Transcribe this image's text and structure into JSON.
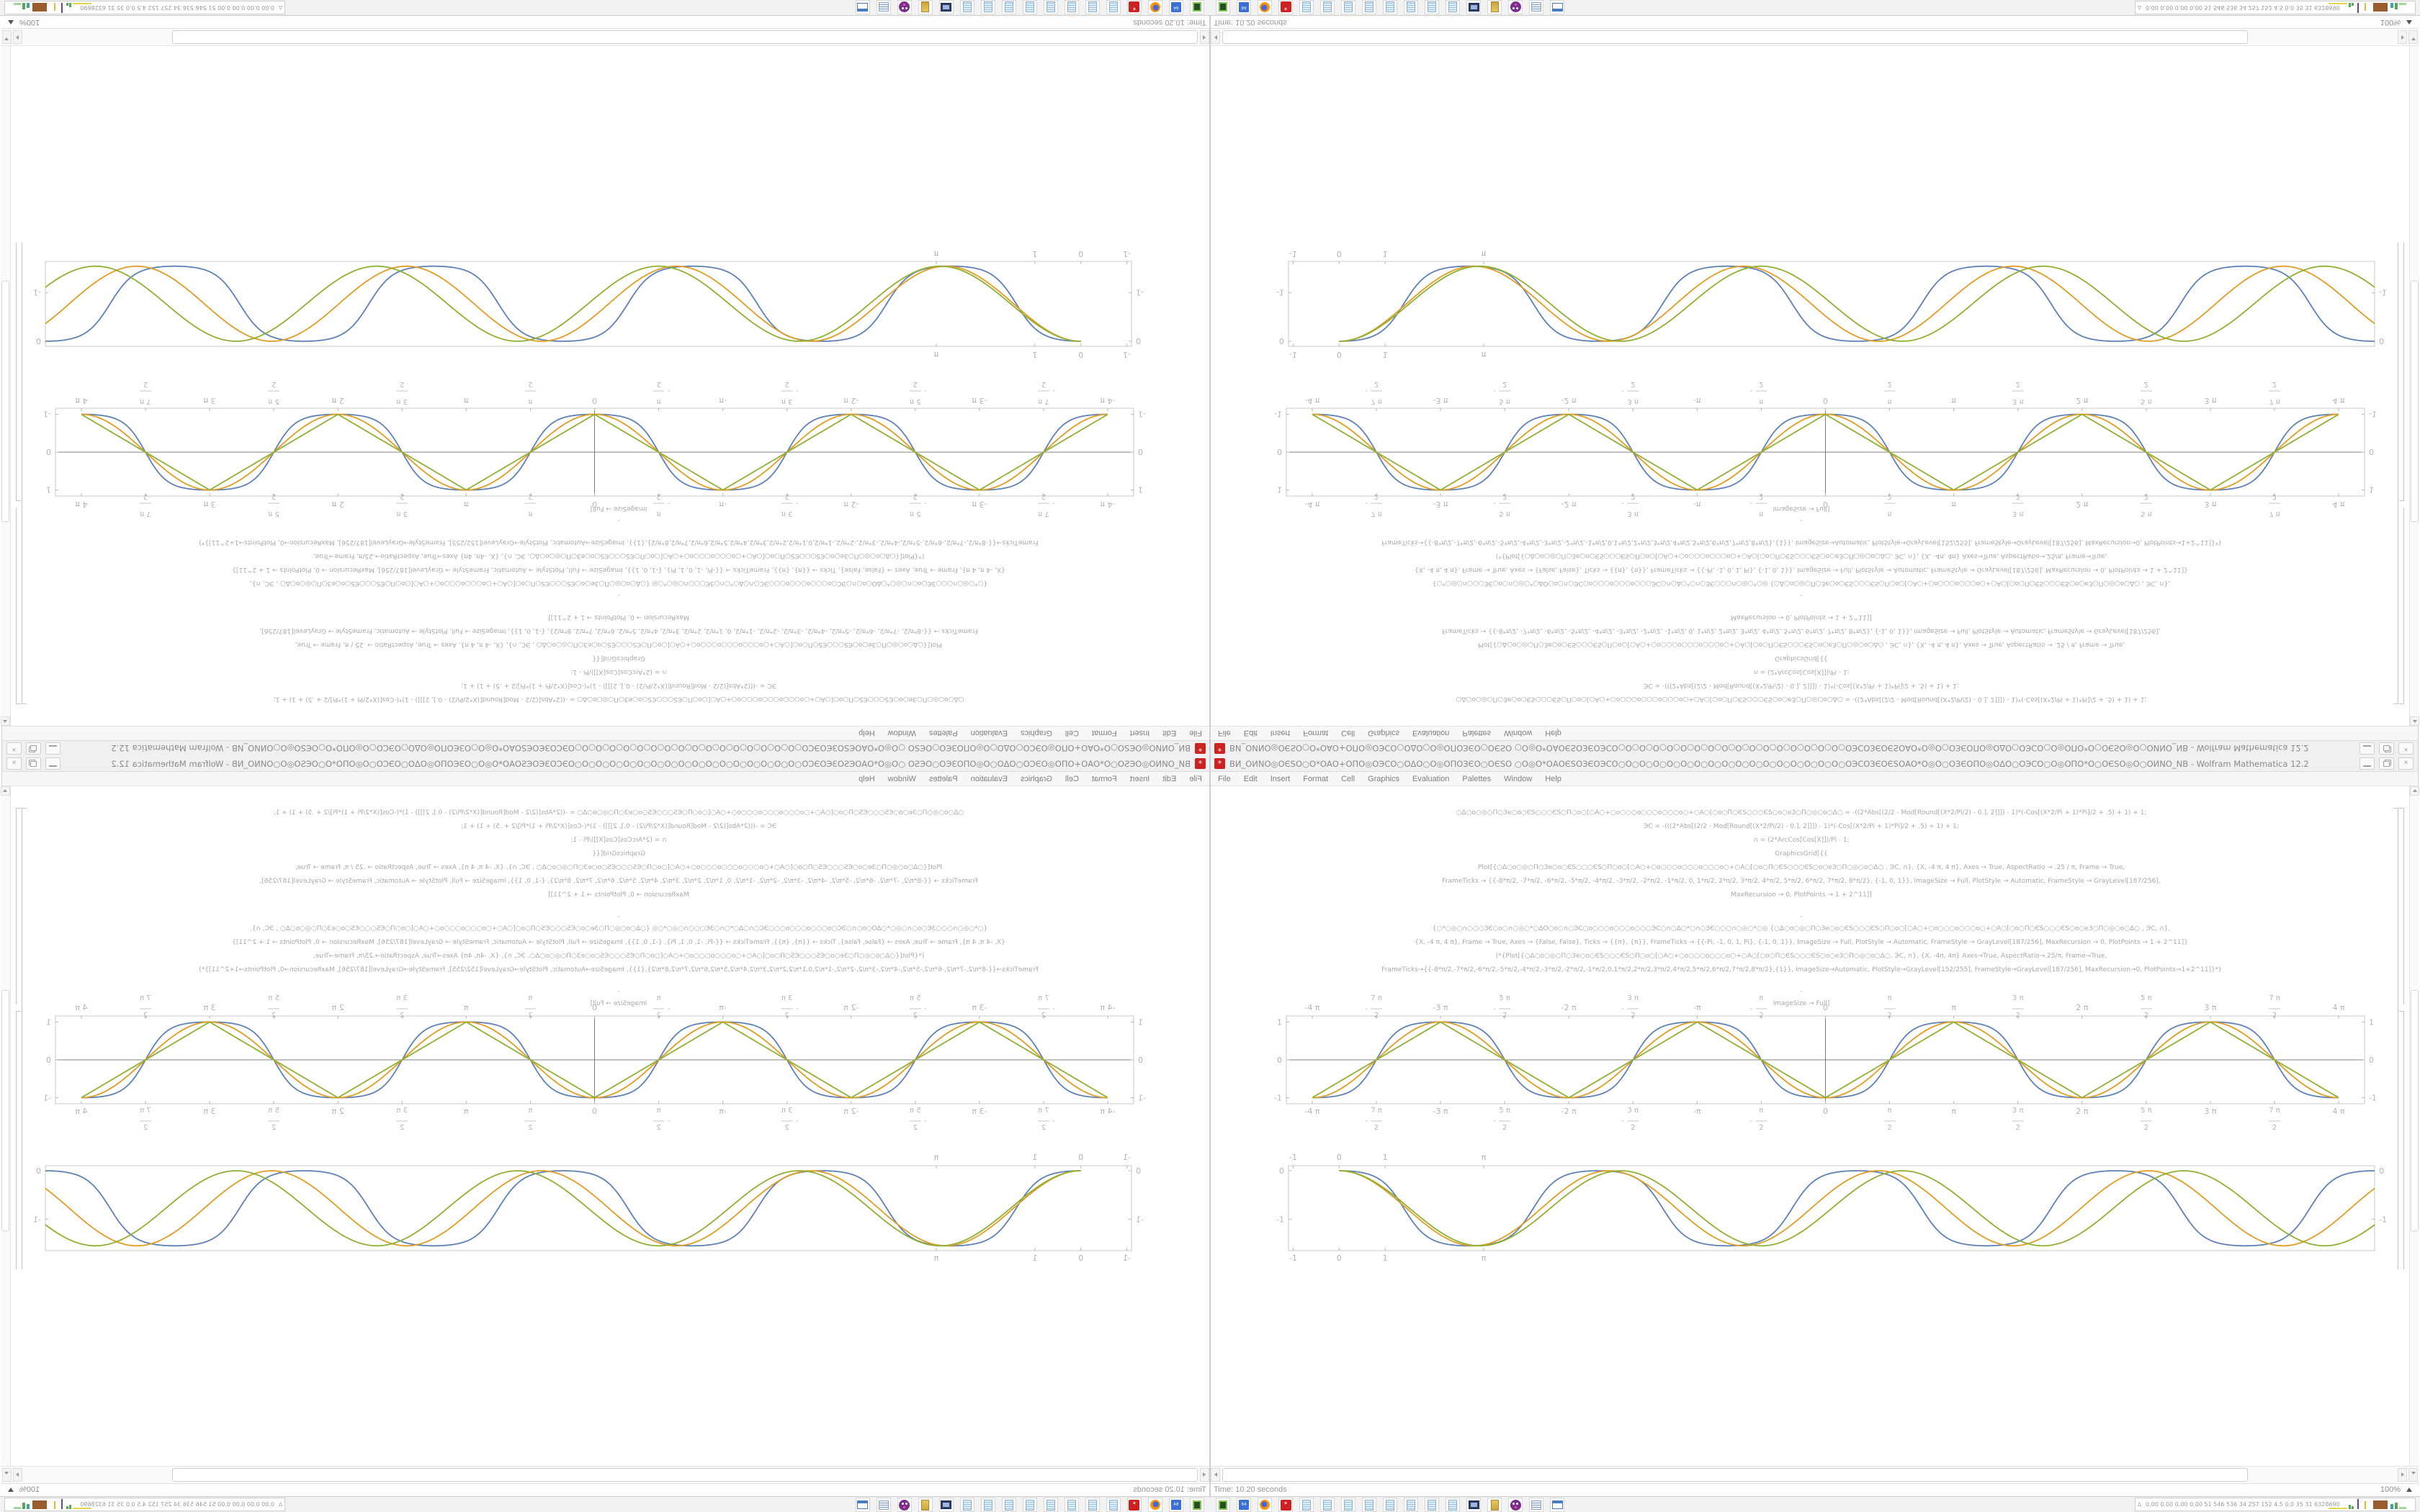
{
  "window": {
    "title": "ВИ_ОИNО◎ОЄЅО○О*ОАО+ОПО◎ОЭСО○ОΔО○О◎ОПОЗЄО○ОЄЅО ○О◎О*ОАОЄЅОЗЄОЭСО○О○О○О○О○О○О○О○О○О○О○О○О○О○О○О○О○ОЭСОЗЄОЄЅОАО*О◎О○ОЗЄОПО◎ОΔО○ОЭСО○О◎ОПО*О○ОЄЅО◎О○ОИNО_NВ - Wolfram Mathematica 12.2",
    "app_icon_glyph": "*"
  },
  "menu": {
    "items": [
      "File",
      "Edit",
      "Insert",
      "Format",
      "Cell",
      "Graphics",
      "Evaluation",
      "Palettes",
      "Window",
      "Help"
    ]
  },
  "code": {
    "lines": [
      {
        "text": "○Δ○о○◎○П○Зе○о○ЄЅ○○○ЄЅ○П○о○[○А○+○о○○○о○○○о○○○о○+○А○[○о○П○ЄЅ○○○ЄЅ○о○еЗ○П○◎○о○Δ○    = -((2*Abs[(2/2 - Mod[Round[(X*2/Pi/2) - 0.], 2]]]) - 1)*(-Cos[(X*2/Pi + 1)*Pi]/2 + .5) + 1) + 1;"
      },
      {
        "text": "ЭС = -(((2*Abs[(2/2 - Mod[Round[(X*2/Pi/2) - 0.], 2]]]) - 1)*(-Cos[(X*2/Pi + 1)*Pi]/2 + .5) + 1) + 1;"
      },
      {
        "text": "∩ = (2*ArcCos[Cos[X]])/Pi - 1;"
      },
      {
        "text": "GraphicsGrid[{{"
      },
      {
        "text": "Plot[{○Δ○о○◎○П○Зе○о○ЄЅ○○○ЄЅ○П○о○[○А○+○о○○○о○○○о○○○о○+○А○[○о○П○ЄЅ○○○ЄЅ○о○еЗ○П○◎○о○Δ○   , ЭС, ∩}, {X, -4 π, 4 π}, Axes → True, AspectRatio → .25 / π, Frame → True,"
      },
      {
        "text": "FrameTicks → {{-8*π/2, -7*π/2, -6*π/2, -5*π/2, -4*π/2, -3*π/2, -2*π/2, -1*π/2, 0, 1*π/2, 2*π/2, 3*π/2, 4*π/2, 5*π/2, 6*π/2, 7*π/2, 8*π/2}, {-1, 0, 1}}, ImageSize → Full, PlotStyle → Automatic, FrameStyle → GrayLevel[187/256],"
      },
      {
        "text": "MaxRecursion → 0, PlotPoints → 1 + 2^11]]"
      },
      {
        "gap": true
      },
      {
        "text": ","
      },
      {
        "text": "{○*○◎○∩○○○ЗЄ○о○∩○◎○*○ΔО○о○∩○ЭС○о○○○о○○○о○○○ЭС○∩○Δ○*○∩○ЗЄ○○○∩○◎○*○◎   {○Δ○о○◎○П○Зе○о○ЄЅ○○○ЄЅ○П○о○[○А○+○о○○○о○○○о○+○А○[○о○П○ЄЅ○○○ЄЅ○о○еЗ○П○◎○о○Δ○   , ЭС, ∩},"
      },
      {
        "text": "{X, -4 π, 4 π}, Frame → True, Axes → {False, False}, Ticks → {{π}, {π}}, FrameTicks → {{-Pi, -1, 0, 1, Pi}, {-1, 0, 1}}, ImageSize → Full, PlotStyle → Automatic, FrameStyle → GrayLevel[187/256], MaxRecursion → 0, PlotPoints → 1 + 2^11]}"
      },
      {
        "text": "(*{Plot[{○Δ○о○◎○П○Зе○о○ЄЅ○○○ЄЅ○П○о○[○А○+○о○○○о○○○о○+○А○[○о○П○ЄЅ○○○ЄЅ○о○еЗ○П○◎○о○Δ○, ЭС, ∩}, {X, -4π, 4π} Axes→True, AspectRatio→.25/π, Frame→True,"
      },
      {
        "text": "FrameTicks→{{-8*π/2,-7*π/2,-6*π/2,-5*π/2,-4*π/2,-3*π/2,-2*π/2,-1*π/2,0,1*π/2,2*π/2,3*π/2,4*π/2,5*π/2,6*π/2,7*π/2,8*π/2},{1}}, ImageSize→Automatic, PlotStyle→GrayLevel[152/255], FrameStyle→GrayLevel[187/256], MaxRecursion→0, PlotPoints→1+2^11]}*)"
      },
      {
        "gap": true
      },
      {
        "text": ","
      },
      {
        "text": "ImageSize → Full]"
      }
    ]
  },
  "chart_data": [
    {
      "type": "line",
      "title": "",
      "frame": true,
      "axes": true,
      "xlim": [
        -13.2,
        13.2
      ],
      "ylim": [
        -1.16,
        1.16
      ],
      "x_plot_range": [
        -12.566,
        12.566
      ],
      "grid": false,
      "frame_color": "#c9c9c9",
      "axis_color": "#5a5a5a",
      "tick_label_color": "#b3b3b3",
      "xticks": [
        {
          "v": -12.566,
          "t": "-4 π"
        },
        {
          "v": -10.996,
          "s": "-",
          "n": "7 π",
          "d": "2"
        },
        {
          "v": -9.4248,
          "t": "-3 π"
        },
        {
          "v": -7.854,
          "s": "-",
          "n": "5 π",
          "d": "2"
        },
        {
          "v": -6.2832,
          "t": "-2 π"
        },
        {
          "v": -4.7124,
          "s": "-",
          "n": "3 π",
          "d": "2"
        },
        {
          "v": -3.1416,
          "t": "-π"
        },
        {
          "v": -1.5708,
          "s": "-",
          "n": "π",
          "d": "2"
        },
        {
          "v": 0,
          "t": "0"
        },
        {
          "v": 1.5708,
          "s": "",
          "n": "π",
          "d": "2"
        },
        {
          "v": 3.1416,
          "t": "π"
        },
        {
          "v": 4.7124,
          "s": "",
          "n": "3 π",
          "d": "2"
        },
        {
          "v": 6.2832,
          "t": "2 π"
        },
        {
          "v": 7.854,
          "s": "",
          "n": "5 π",
          "d": "2"
        },
        {
          "v": 9.4248,
          "t": "3 π"
        },
        {
          "v": 10.996,
          "s": "",
          "n": "7 π",
          "d": "2"
        },
        {
          "v": 12.566,
          "t": "4 π"
        }
      ],
      "yticks": [
        {
          "v": -1,
          "t": "-1"
        },
        {
          "v": 0,
          "t": "0"
        },
        {
          "v": 1,
          "t": "1"
        }
      ],
      "series": [
        {
          "name": "smoothed-square-wave",
          "color": "#5e81b5",
          "fn": "flatcos",
          "omega": 1,
          "amp": 1,
          "shape": 1.8
        },
        {
          "name": "cosine-wave",
          "color": "#e19c24",
          "fn": "negcos",
          "omega": 1,
          "amp": 1
        },
        {
          "name": "triangle-wave",
          "color": "#8fb032",
          "fn": "triangle",
          "omega": 1,
          "amp": 1
        }
      ]
    },
    {
      "type": "line",
      "title": "",
      "frame": true,
      "axes": false,
      "xlim": [
        -1.1,
        22.5
      ],
      "ylim": [
        -1.65,
        0.105
      ],
      "x_plot_range": [
        0,
        22.5
      ],
      "grid": false,
      "frame_color": "#c9c9c9",
      "tick_label_color": "#b3b3b3",
      "xticks": [
        {
          "v": -1,
          "t": "-1"
        },
        {
          "v": 0,
          "t": "0"
        },
        {
          "v": 1,
          "t": "1"
        },
        {
          "v": 3.1416,
          "t": "π"
        }
      ],
      "yticks": [
        {
          "v": 0,
          "t": "0"
        },
        {
          "v": -1,
          "t": "-1"
        }
      ],
      "series": [
        {
          "name": "drifting-wave-blue",
          "color": "#5e81b5",
          "fn": "driftflat",
          "omega": 1.117,
          "amp": 0.775,
          "shape": 1.6
        },
        {
          "name": "drifting-wave-orange",
          "color": "#e19c24",
          "fn": "driftcos",
          "omega": 1.072,
          "amp": 0.775
        },
        {
          "name": "drifting-wave-green",
          "color": "#8fb032",
          "fn": "driftcos",
          "omega": 1.027,
          "amp": 0.775
        }
      ]
    }
  ],
  "statusbar": {
    "left": "Time: 10.20 seconds",
    "zoom": "100%"
  },
  "taskbar": {
    "icons": [
      {
        "name": "terminal"
      },
      {
        "name": "floppy-64",
        "label": "64"
      },
      {
        "name": "firefox"
      },
      {
        "name": "mathematica-gear",
        "label": "*"
      },
      {
        "name": "notepad"
      },
      {
        "name": "notepad"
      },
      {
        "name": "notepad"
      },
      {
        "name": "notepad"
      },
      {
        "name": "notepad"
      },
      {
        "name": "notepad"
      },
      {
        "name": "notepad"
      },
      {
        "name": "notepad"
      },
      {
        "name": "monitor-camera"
      },
      {
        "name": "folder"
      },
      {
        "name": "purple-app"
      },
      {
        "name": "printer"
      },
      {
        "name": "window-frame"
      }
    ],
    "monitor_glyph": "∆",
    "monitor_text": "0.00 0.00 0.00 0.00  51  546 536  34  257 152  4.5  0.0  35  31  6328690"
  }
}
